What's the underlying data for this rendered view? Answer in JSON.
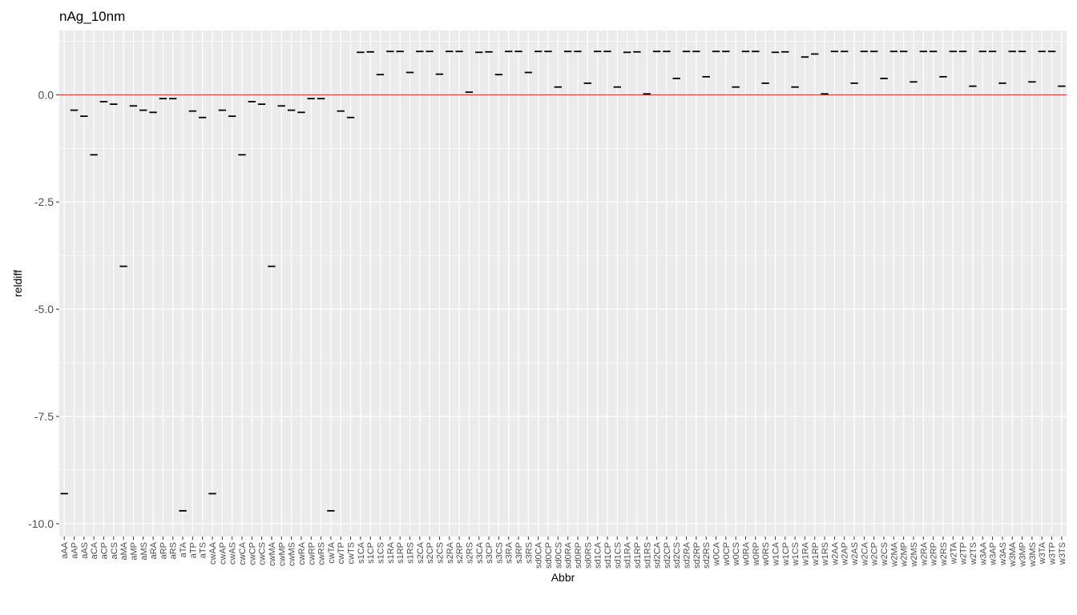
{
  "chart_data": {
    "type": "scatter",
    "title": "nAg_10nm",
    "xlabel": "Abbr",
    "ylabel": "reldiff",
    "ylim": [
      -10.3,
      1.5
    ],
    "yticks": [
      0.0,
      -2.5,
      -5.0,
      -7.5,
      -10.0
    ],
    "ytick_labels": [
      "0.0",
      "-2.5",
      "-5.0",
      "-7.5",
      "-10.0"
    ],
    "reference_line": {
      "y": 0,
      "color": "#e0201c"
    },
    "grid": true,
    "marker": "horizontal-dash",
    "marker_color": "#000000",
    "panel_color": "#ebebeb",
    "grid_color": "#ffffff",
    "categories": [
      "aAA",
      "aAP",
      "aAS",
      "aCA",
      "aCP",
      "aCS",
      "aMA",
      "aMP",
      "aMS",
      "aRA",
      "aRP",
      "aRS",
      "aTA",
      "aTP",
      "aTS",
      "cwAA",
      "cwAP",
      "cwAS",
      "cwCA",
      "cwCP",
      "cwCS",
      "cwMA",
      "cwMP",
      "cwMS",
      "cwRA",
      "cwRP",
      "cwRS",
      "cwTA",
      "cwTP",
      "cwTS",
      "s1CA",
      "s1CP",
      "s1CS",
      "s1RA",
      "s1RP",
      "s1RS",
      "s2CA",
      "s2CP",
      "s2CS",
      "s2RA",
      "s2RP",
      "s2RS",
      "s3CA",
      "s3CP",
      "s3CS",
      "s3RA",
      "s3RP",
      "s3RS",
      "sd0CA",
      "sd0CP",
      "sd0CS",
      "sd0RA",
      "sd0RP",
      "sd0RS",
      "sd1CA",
      "sd1CP",
      "sd1CS",
      "sd1RA",
      "sd1RP",
      "sd1RS",
      "sd2CA",
      "sd2CP",
      "sd2CS",
      "sd2RA",
      "sd2RP",
      "sd2RS",
      "w0CA",
      "w0CP",
      "w0CS",
      "w0RA",
      "w0RP",
      "w0RS",
      "w1CA",
      "w1CP",
      "w1CS",
      "w1RA",
      "w1RP",
      "w1RS",
      "w2AA",
      "w2AP",
      "w2AS",
      "w2CA",
      "w2CP",
      "w2CS",
      "w2MA",
      "w2MP",
      "w2MS",
      "w2RA",
      "w2RP",
      "w2RS",
      "w2TA",
      "w2TP",
      "w2TS",
      "w3AA",
      "w3AP",
      "w3AS",
      "w3MA",
      "w3MP",
      "w3MS",
      "w3TA",
      "w3TP",
      "w3TS"
    ],
    "values": [
      -9.3,
      -0.36,
      -0.5,
      -1.4,
      -0.16,
      -0.22,
      -4.0,
      -0.26,
      -0.36,
      -0.41,
      -0.09,
      -0.09,
      -9.7,
      -0.38,
      -0.53,
      -9.3,
      -0.36,
      -0.5,
      -1.4,
      -0.16,
      -0.22,
      -4.0,
      -0.26,
      -0.36,
      -0.41,
      -0.09,
      -0.09,
      -9.7,
      -0.38,
      -0.53,
      0.99,
      1.0,
      0.47,
      1.01,
      1.01,
      0.52,
      1.01,
      1.01,
      0.48,
      1.01,
      1.01,
      0.06,
      0.99,
      1.0,
      0.47,
      1.01,
      1.01,
      0.52,
      1.01,
      1.01,
      0.18,
      1.01,
      1.01,
      0.27,
      1.01,
      1.01,
      0.18,
      0.99,
      1.0,
      0.02,
      1.01,
      1.01,
      0.38,
      1.01,
      1.01,
      0.42,
      1.01,
      1.01,
      0.18,
      1.01,
      1.01,
      0.27,
      0.99,
      1.0,
      0.18,
      0.88,
      0.95,
      0.02,
      1.01,
      1.01,
      0.27,
      1.01,
      1.01,
      0.38,
      1.01,
      1.01,
      0.3,
      1.01,
      1.01,
      0.42,
      1.01,
      1.01,
      0.2,
      1.01,
      1.01,
      0.27,
      1.01,
      1.01,
      0.3,
      1.01,
      1.01,
      0.2
    ]
  }
}
